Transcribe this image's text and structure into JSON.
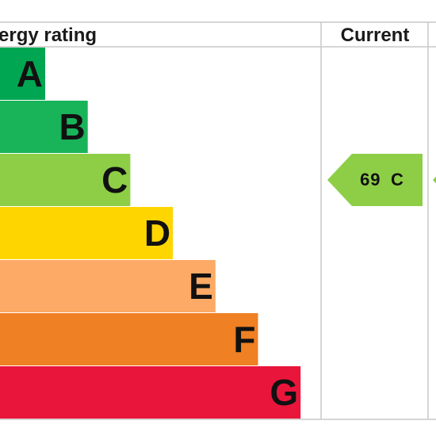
{
  "chart_data": {
    "type": "bar",
    "header": {
      "rating_label": "ergy rating",
      "current_label": "Current"
    },
    "bands": [
      {
        "letter": "A",
        "color": "#00a651"
      },
      {
        "letter": "B",
        "color": "#19b459"
      },
      {
        "letter": "C",
        "color": "#8dce46"
      },
      {
        "letter": "D",
        "color": "#ffd500"
      },
      {
        "letter": "E",
        "color": "#fcaa65"
      },
      {
        "letter": "F",
        "color": "#ef8023"
      },
      {
        "letter": "G",
        "color": "#e9153b"
      }
    ],
    "current": {
      "value": "69",
      "band": "C",
      "color": "#8dce46"
    },
    "potential_arrow_color": "#8dce46"
  }
}
